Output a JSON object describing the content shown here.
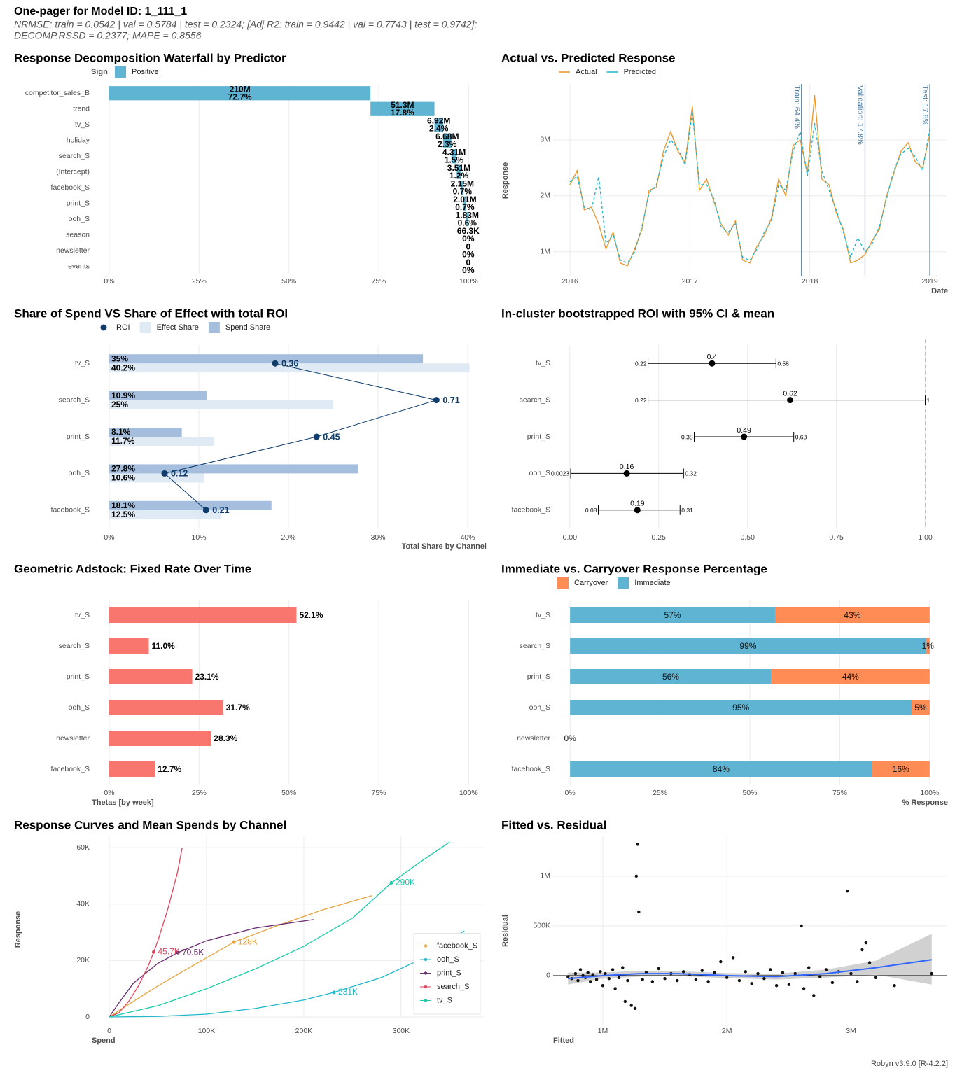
{
  "header": {
    "title": "One-pager for Model ID: 1_111_1",
    "subtitle": [
      "NRMSE: train = 0.0542 | val = 0.5784 | test = 0.2324; [Adj.R2: train = 0.9442 | val = 0.7743 | test = 0.9742];",
      "DECOMP.RSSD = 0.2377; MAPE = 0.8556"
    ]
  },
  "footer": "Robyn v3.9.0 [R-4.2.2]",
  "chart_data": [
    {
      "type": "waterfall",
      "title": "Response Decomposition Waterfall by Predictor",
      "legend_title": "Sign",
      "series_name": "Positive",
      "color": "#5fb4d3",
      "categories": [
        "competitor_sales_B",
        "trend",
        "tv_S",
        "holiday",
        "search_S",
        "(Intercept)",
        "facebook_S",
        "print_S",
        "ooh_S",
        "season",
        "newsletter",
        "events"
      ],
      "values": [
        72.7,
        17.8,
        2.4,
        2.3,
        1.5,
        1.2,
        0.7,
        0.7,
        0.6,
        0,
        0,
        0
      ],
      "value_labels": [
        "72.7%",
        "17.8%",
        "2.4%",
        "2.3%",
        "1.5%",
        "1.2%",
        "0.7%",
        "0.7%",
        "0.6%",
        "0%",
        "0%",
        "0%"
      ],
      "amounts": [
        210000000,
        51300000,
        6920000,
        6680000,
        4310000,
        3510000,
        2150000,
        2010000,
        1830000,
        66300,
        0,
        0
      ],
      "amount_labels": [
        "210M",
        "51.3M",
        "6.92M",
        "6.68M",
        "4.31M",
        "3.51M",
        "2.15M",
        "2.01M",
        "1.83M",
        "66.3K",
        "0",
        "0"
      ],
      "xlim": [
        0,
        105
      ],
      "xticks": [
        {
          "value": 0,
          "label": "0%"
        },
        {
          "value": 25,
          "label": "25%"
        },
        {
          "value": 50,
          "label": "50%"
        },
        {
          "value": 75,
          "label": "75%"
        },
        {
          "value": 100,
          "label": "100%"
        }
      ]
    },
    {
      "type": "line",
      "title": "Actual vs. Predicted Response",
      "xlabel": "Date",
      "ylabel": "Response",
      "legend_position": "top",
      "x": [
        2016,
        2016.06,
        2016.12,
        2016.18,
        2016.24,
        2016.3,
        2016.36,
        2016.42,
        2016.48,
        2016.54,
        2016.6,
        2016.66,
        2016.72,
        2016.78,
        2016.84,
        2016.9,
        2016.96,
        2017.02,
        2017.08,
        2017.14,
        2017.2,
        2017.26,
        2017.32,
        2017.38,
        2017.44,
        2017.5,
        2017.56,
        2017.62,
        2017.68,
        2017.74,
        2017.8,
        2017.86,
        2017.92,
        2017.98,
        2018.04,
        2018.1,
        2018.16,
        2018.22,
        2018.28,
        2018.34,
        2018.4,
        2018.46,
        2018.52,
        2018.58,
        2018.64,
        2018.7,
        2018.76,
        2018.82,
        2018.88,
        2018.94,
        2019
      ],
      "series": [
        {
          "name": "Actual",
          "color": "#e8962b",
          "linetype": "solid",
          "values": [
            2200000,
            2450000,
            1750000,
            1800000,
            1500000,
            1050000,
            1350000,
            800000,
            750000,
            1050000,
            1400000,
            2100000,
            2150000,
            2800000,
            3150000,
            2800000,
            2600000,
            3600000,
            2100000,
            2300000,
            1900000,
            1500000,
            1300000,
            1550000,
            850000,
            800000,
            1100000,
            1300000,
            1600000,
            2300000,
            2000000,
            2900000,
            3000000,
            2400000,
            3800000,
            2300000,
            2200000,
            1700000,
            1400000,
            800000,
            850000,
            950000,
            1200000,
            1400000,
            2000000,
            2400000,
            2800000,
            2950000,
            2600000,
            2500000,
            3100000
          ]
        },
        {
          "name": "Predicted",
          "color": "#1fb5cc",
          "linetype": "dashed",
          "values": [
            2250000,
            2350000,
            1800000,
            1750000,
            2350000,
            1150000,
            1300000,
            850000,
            800000,
            1000000,
            1450000,
            2050000,
            2200000,
            2700000,
            3000000,
            2850000,
            2550000,
            3500000,
            2200000,
            2200000,
            1950000,
            1450000,
            1350000,
            1500000,
            900000,
            850000,
            1050000,
            1350000,
            1550000,
            2200000,
            2100000,
            2800000,
            3150000,
            2350000,
            3300000,
            2450000,
            2100000,
            1750000,
            1350000,
            900000,
            1250000,
            1000000,
            1150000,
            1450000,
            1950000,
            2450000,
            2750000,
            2850000,
            2700000,
            2450000,
            3200000
          ]
        }
      ],
      "splits": [
        {
          "x": 2017.93,
          "label": "Train: 64.4%"
        },
        {
          "x": 2018.46,
          "label": "Validation: 17.8%"
        },
        {
          "x": 2019,
          "label": "Test: 17.8%"
        }
      ],
      "xlim": [
        2015.86,
        2019.14
      ],
      "xticks": [
        2016,
        2017,
        2018,
        2019
      ],
      "ylim": [
        560000,
        4000000
      ],
      "yticks": [
        {
          "value": 1000000,
          "label": "1M"
        },
        {
          "value": 2000000,
          "label": "2M"
        },
        {
          "value": 3000000,
          "label": "3M"
        }
      ]
    },
    {
      "type": "combo",
      "title": "Share of Spend VS Share of Effect with total ROI",
      "xlabel": "Total Share by Channel",
      "categories": [
        "tv_S",
        "search_S",
        "print_S",
        "ooh_S",
        "facebook_S"
      ],
      "roi": {
        "name": "ROI",
        "color": "#0f3c6b",
        "values": [
          0.36,
          0.71,
          0.45,
          0.12,
          0.21
        ]
      },
      "series": [
        {
          "name": "Effect Share",
          "color": "#e0eaf4",
          "values": [
            40.2,
            25,
            11.7,
            10.6,
            12.5
          ],
          "value_labels": [
            "40.2%",
            "25%",
            "11.7%",
            "10.6%",
            "12.5%"
          ]
        },
        {
          "name": "Spend Share",
          "color": "#a5bedd",
          "values": [
            35,
            10.9,
            8.1,
            27.8,
            18.1
          ],
          "value_labels": [
            "35%",
            "10.9%",
            "8.1%",
            "27.8%",
            "18.1%"
          ]
        }
      ],
      "xlim": [
        0,
        42.1
      ],
      "xticks": [
        {
          "value": 0,
          "label": "0%"
        },
        {
          "value": 10,
          "label": "10%"
        },
        {
          "value": 20,
          "label": "20%"
        },
        {
          "value": 30,
          "label": "30%"
        },
        {
          "value": 40,
          "label": "40%"
        }
      ]
    },
    {
      "type": "errorbar",
      "title": "In-cluster bootstrapped ROI with 95% CI & mean",
      "categories": [
        "tv_S",
        "search_S",
        "print_S",
        "ooh_S",
        "facebook_S"
      ],
      "mean": [
        0.4,
        0.62,
        0.49,
        0.16,
        0.19
      ],
      "lower": [
        0.22,
        0.22,
        0.35,
        0.0023,
        0.08
      ],
      "upper": [
        0.58,
        1,
        0.63,
        0.32,
        0.31
      ],
      "reference_x": 1,
      "xlim": [
        -0.047,
        1.06
      ],
      "xticks": [
        {
          "value": 0,
          "label": "0.00"
        },
        0.25,
        {
          "value": 0.5,
          "label": "0.50"
        },
        0.75,
        {
          "value": 1,
          "label": "1.00"
        }
      ]
    },
    {
      "type": "bar",
      "title": "Geometric Adstock: Fixed Rate Over Time",
      "xlabel": "Thetas [by week]",
      "color": "#f8766d",
      "categories": [
        "tv_S",
        "search_S",
        "print_S",
        "ooh_S",
        "newsletter",
        "facebook_S"
      ],
      "values": [
        52.1,
        11.0,
        23.1,
        31.7,
        28.3,
        12.7
      ],
      "value_labels": [
        "52.1%",
        "11.0%",
        "23.1%",
        "31.7%",
        "28.3%",
        "12.7%"
      ],
      "xlim": [
        0,
        105
      ],
      "xticks": [
        {
          "value": 0,
          "label": "0%"
        },
        {
          "value": 25,
          "label": "25%"
        },
        {
          "value": 50,
          "label": "50%"
        },
        {
          "value": 75,
          "label": "75%"
        },
        {
          "value": 100,
          "label": "100%"
        }
      ]
    },
    {
      "type": "stackedbar",
      "title": "Immediate vs. Carryover Response Percentage",
      "xlabel": "% Response",
      "categories": [
        "tv_S",
        "search_S",
        "print_S",
        "ooh_S",
        "newsletter",
        "facebook_S"
      ],
      "series": [
        {
          "name": "Carryover",
          "color": "#ff8c55",
          "values": [
            43,
            1,
            44,
            5,
            0,
            16
          ],
          "value_labels": [
            "43%",
            "1%",
            "44%",
            "5%",
            null,
            "16%"
          ]
        },
        {
          "name": "Immediate",
          "color": "#5fb4d3",
          "values": [
            57,
            99,
            56,
            95,
            0,
            84
          ],
          "value_labels": [
            "57%",
            "99%",
            "56%",
            "95%",
            "0%",
            "84%"
          ]
        }
      ],
      "xlim": [
        -4.7,
        104.7
      ],
      "xticks": [
        {
          "value": 0,
          "label": "0%"
        },
        {
          "value": 25,
          "label": "25%"
        },
        {
          "value": 50,
          "label": "50%"
        },
        {
          "value": 75,
          "label": "75%"
        },
        {
          "value": 100,
          "label": "100%"
        }
      ]
    },
    {
      "type": "line",
      "title": "Response Curves and Mean Spends by Channel",
      "xlabel": "Spend",
      "ylabel": "Response",
      "legend_position": "bottom-right",
      "series": [
        {
          "name": "facebook_S",
          "color": "#e8a33d",
          "linetype": "solid",
          "x": [
            0,
            20000,
            50000,
            90000,
            128000,
            170000,
            220000,
            270000
          ],
          "values": [
            0,
            4500,
            11000,
            19000,
            26500,
            32000,
            38000,
            43000
          ],
          "mean_spend": 128000,
          "mean_response": 26500,
          "mean_label": "128K"
        },
        {
          "name": "ooh_S",
          "color": "#1fb8c9",
          "linetype": "solid",
          "x": [
            0,
            50000,
            100000,
            150000,
            200000,
            231000,
            280000,
            330000,
            365000
          ],
          "values": [
            0,
            200,
            1000,
            3000,
            6000,
            8700,
            14000,
            22000,
            30500
          ],
          "mean_spend": 231000,
          "mean_response": 8700,
          "mean_label": "231K"
        },
        {
          "name": "print_S",
          "color": "#6a2c70",
          "linetype": "solid",
          "x": [
            0,
            10000,
            25000,
            50000,
            70500,
            100000,
            150000,
            210000
          ],
          "values": [
            0,
            5000,
            12000,
            19000,
            22800,
            27000,
            31500,
            34500
          ],
          "mean_spend": 70500,
          "mean_response": 22800,
          "mean_label": "70.5K"
        },
        {
          "name": "search_S",
          "color": "#e0445a",
          "linetype": "solid",
          "x": [
            0,
            10000,
            20000,
            30000,
            40000,
            45700,
            50000,
            60000,
            70000,
            75000
          ],
          "values": [
            0,
            1500,
            5500,
            11000,
            18000,
            23000,
            27000,
            38000,
            51000,
            60000
          ],
          "mean_spend": 45700,
          "mean_response": 23000,
          "mean_label": "45.7K"
        },
        {
          "name": "tv_S",
          "color": "#19c9a9",
          "linetype": "solid",
          "x": [
            0,
            50000,
            100000,
            150000,
            200000,
            250000,
            290000,
            320000,
            350000
          ],
          "values": [
            0,
            4000,
            10000,
            17000,
            25000,
            35000,
            47500,
            55000,
            62000
          ],
          "mean_spend": 290000,
          "mean_response": 47500,
          "mean_label": "290K"
        }
      ],
      "xlim": [
        0,
        385000
      ],
      "xticks": [
        0,
        {
          "value": 100000,
          "label": "100K"
        },
        {
          "value": 200000,
          "label": "200K"
        },
        {
          "value": 300000,
          "label": "300K"
        }
      ],
      "ylim": [
        0,
        64000
      ],
      "yticks": [
        0,
        {
          "value": 20000,
          "label": "20K"
        },
        {
          "value": 40000,
          "label": "40K"
        },
        {
          "value": 60000,
          "label": "60K"
        }
      ]
    },
    {
      "type": "scatter",
      "title": "Fitted vs. Residual",
      "xlabel": "Fitted",
      "ylabel": "Residual",
      "color": "#111111",
      "x": [
        720000,
        750000,
        780000,
        800000,
        820000,
        840000,
        860000,
        880000,
        900000,
        920000,
        950000,
        980000,
        1000000,
        1020000,
        1050000,
        1080000,
        1100000,
        1130000,
        1160000,
        1180000,
        1200000,
        1230000,
        1260000,
        1270000,
        1280000,
        1290000,
        1320000,
        1350000,
        1400000,
        1450000,
        1500000,
        1550000,
        1600000,
        1650000,
        1700000,
        1750000,
        1800000,
        1850000,
        1900000,
        1950000,
        2000000,
        2050000,
        2100000,
        2150000,
        2200000,
        2250000,
        2300000,
        2350000,
        2400000,
        2450000,
        2500000,
        2550000,
        2600000,
        2620000,
        2660000,
        2700000,
        2750000,
        2800000,
        2850000,
        2900000,
        2970000,
        3000000,
        3050000,
        3090000,
        3120000,
        3150000,
        3200000,
        3350000,
        3650000
      ],
      "values": [
        -10000,
        -30000,
        20000,
        -50000,
        60000,
        0,
        -20000,
        30000,
        -60000,
        10000,
        -40000,
        40000,
        -100000,
        20000,
        -30000,
        60000,
        -130000,
        -20000,
        80000,
        -260000,
        -50000,
        -300000,
        -330000,
        1000000,
        1320000,
        640000,
        -40000,
        30000,
        -60000,
        70000,
        -30000,
        20000,
        -50000,
        40000,
        10000,
        -40000,
        50000,
        -60000,
        30000,
        140000,
        -20000,
        180000,
        -50000,
        40000,
        -80000,
        20000,
        -30000,
        60000,
        -100000,
        30000,
        -90000,
        20000,
        500000,
        -130000,
        80000,
        -200000,
        -10000,
        60000,
        -70000,
        40000,
        850000,
        20000,
        -60000,
        260000,
        330000,
        130000,
        -20000,
        -100000,
        20000
      ],
      "smooth": {
        "color": "#3366ff",
        "x": [
          720000,
          1000000,
          1300000,
          1600000,
          2000000,
          2400000,
          2800000,
          3200000,
          3650000
        ],
        "values": [
          -30000,
          0,
          20000,
          20000,
          0,
          -10000,
          20000,
          80000,
          160000
        ],
        "lower": [
          -90000,
          -30000,
          -10000,
          -5000,
          -25000,
          -40000,
          -20000,
          10000,
          -90000
        ],
        "upper": [
          30000,
          30000,
          50000,
          45000,
          25000,
          20000,
          60000,
          150000,
          420000
        ]
      },
      "reference_y": 0,
      "xlim": [
        600000,
        3770000
      ],
      "xticks": [
        {
          "value": 1000000,
          "label": "1M"
        },
        {
          "value": 2000000,
          "label": "2M"
        },
        {
          "value": 3000000,
          "label": "3M"
        }
      ],
      "ylim": [
        -500000,
        1400000
      ],
      "yticks": [
        0,
        {
          "value": 500000,
          "label": "500K"
        },
        {
          "value": 1000000,
          "label": "1M"
        }
      ]
    }
  ]
}
